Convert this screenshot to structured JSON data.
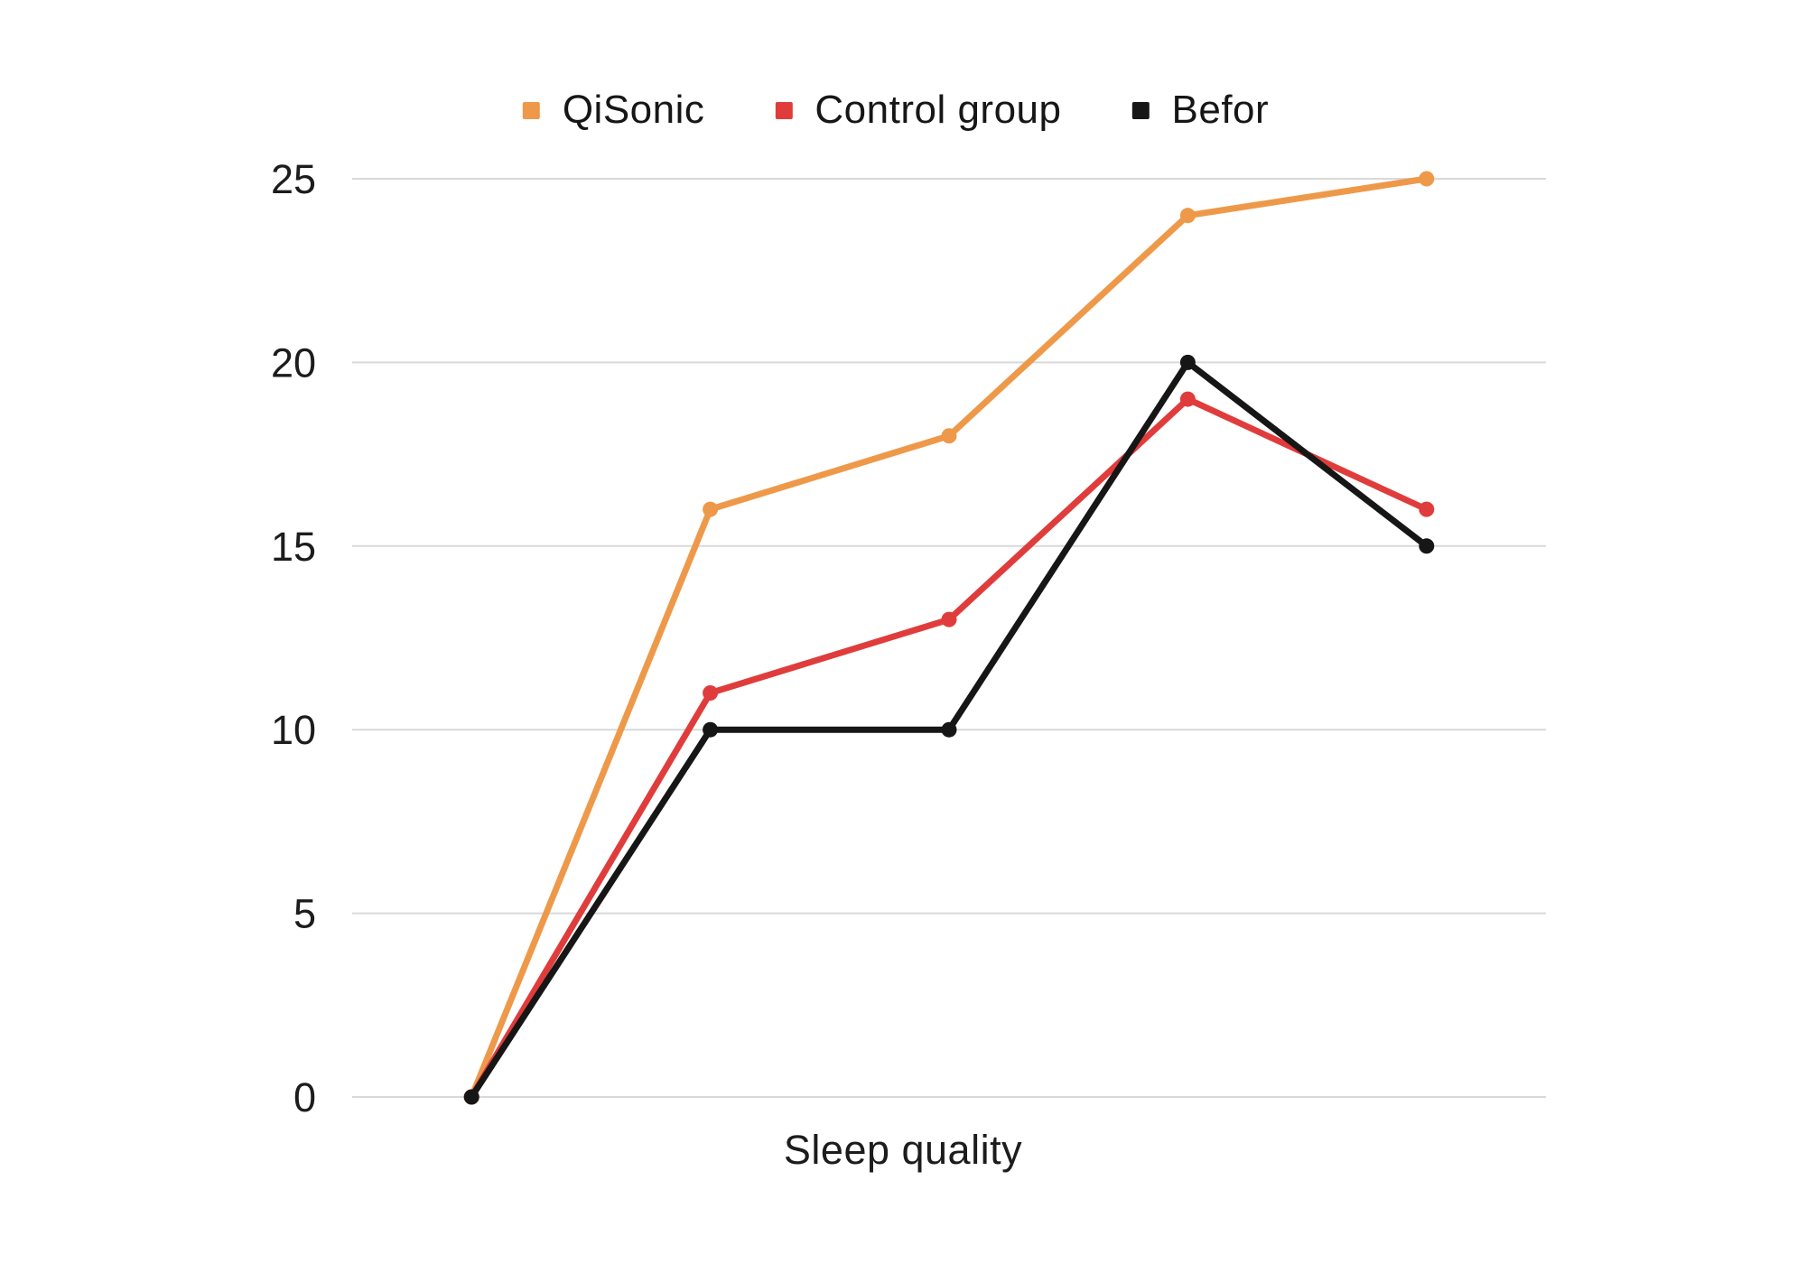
{
  "chart_data": {
    "type": "line",
    "title": "",
    "xlabel": "Sleep quality",
    "ylabel": "",
    "x": [
      1,
      2,
      3,
      4,
      5
    ],
    "x_tick_labels_visible": false,
    "yticks": [
      0,
      5,
      10,
      15,
      20,
      25
    ],
    "ylim": [
      0,
      25
    ],
    "grid": "horizontal",
    "legend_position": "top-center",
    "series": [
      {
        "name": "QiSonic",
        "color": "#EE9949",
        "values": [
          0,
          16,
          18,
          24,
          25
        ]
      },
      {
        "name": "Control group",
        "color": "#E03C3C",
        "values": [
          0,
          11,
          13,
          19,
          16
        ]
      },
      {
        "name": "Befor",
        "color": "#161616",
        "values": [
          0,
          10,
          10,
          20,
          15
        ]
      }
    ],
    "colors": {
      "gridline": "#d9d9d9",
      "tick_label": "#1c1c1c",
      "background": "#ffffff"
    }
  }
}
